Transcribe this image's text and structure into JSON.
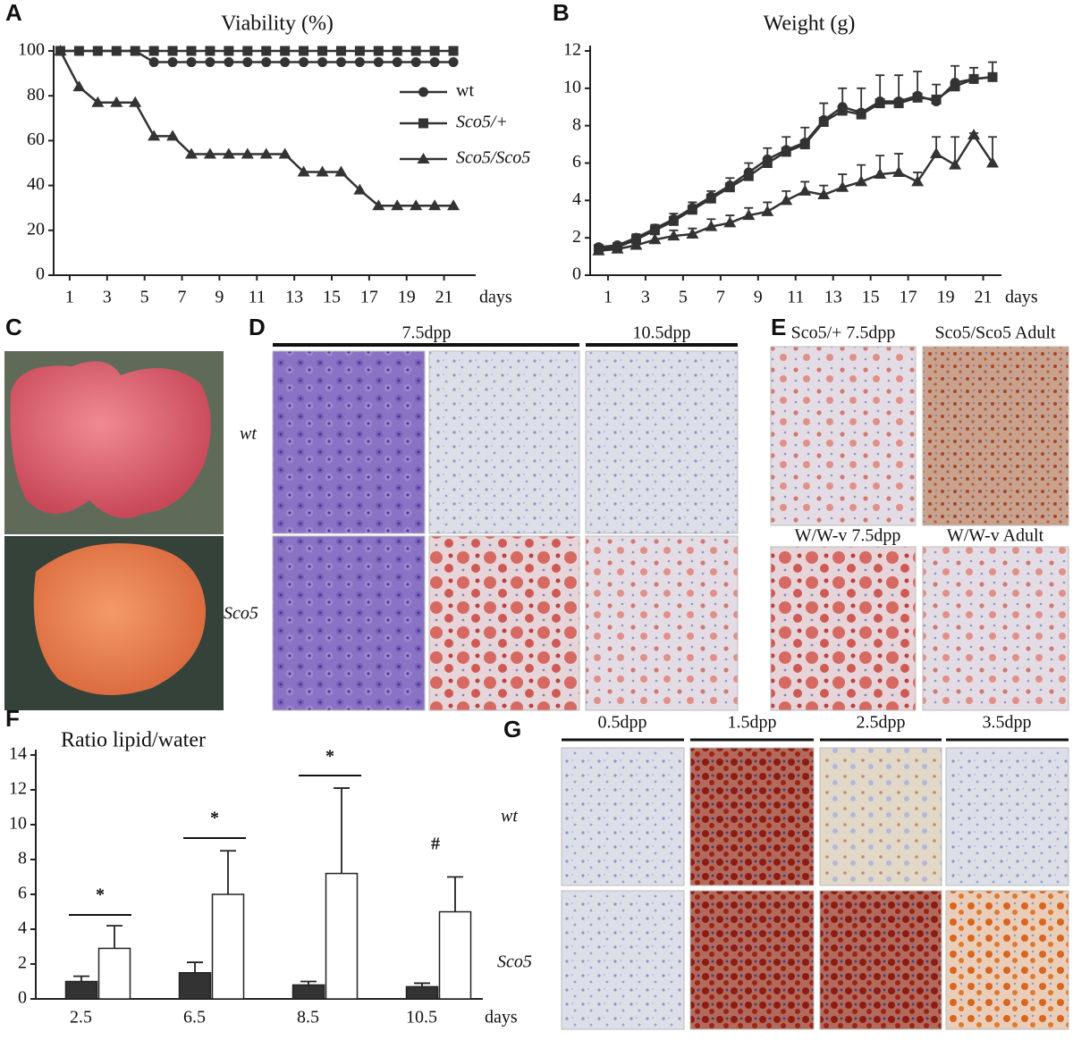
{
  "panel_labels": [
    "A",
    "B",
    "C",
    "D",
    "E",
    "F",
    "G"
  ],
  "chart_data": [
    {
      "type": "line",
      "title": "Viability (%)",
      "x": [
        0.5,
        1.5,
        2.5,
        3.5,
        4.5,
        5.5,
        6.5,
        7.5,
        8.5,
        9.5,
        10.5,
        11.5,
        12.5,
        13.5,
        14.5,
        15.5,
        16.5,
        17.5,
        18.5,
        19.5,
        20.5,
        21.5
      ],
      "xlim": [
        0,
        22.5
      ],
      "xticks": [
        1,
        3,
        5,
        7,
        9,
        11,
        13,
        15,
        17,
        19,
        21
      ],
      "xlabel": "days",
      "ylim": [
        0,
        100
      ],
      "yticks": [
        0,
        20,
        40,
        60,
        80,
        100
      ],
      "legend": "upper right",
      "series": [
        {
          "name": "wt",
          "color": "#333333",
          "marker": "circle",
          "values": [
            100,
            100,
            100,
            100,
            100,
            95,
            95,
            95,
            95,
            95,
            95,
            95,
            95,
            95,
            95,
            95,
            95,
            95,
            95,
            95,
            95,
            95
          ]
        },
        {
          "name": "Sco5/+",
          "color": "#333333",
          "marker": "square",
          "values": [
            100,
            100,
            100,
            100,
            100,
            100,
            100,
            100,
            100,
            100,
            100,
            100,
            100,
            100,
            100,
            100,
            100,
            100,
            100,
            100,
            100,
            100
          ]
        },
        {
          "name": "Sco5/Sco5",
          "color": "#333333",
          "marker": "triangle",
          "values": [
            100,
            84,
            77,
            77,
            77,
            62,
            62,
            54,
            54,
            54,
            54,
            54,
            54,
            46,
            46,
            46,
            38,
            31,
            31,
            31,
            31,
            31
          ]
        }
      ]
    },
    {
      "type": "line",
      "title": "Weight (g)",
      "x": [
        0.5,
        1.5,
        2.5,
        3.5,
        4.5,
        5.5,
        6.5,
        7.5,
        8.5,
        9.5,
        10.5,
        11.5,
        12.5,
        13.5,
        14.5,
        15.5,
        16.5,
        17.5,
        18.5,
        19.5,
        20.5,
        21.5
      ],
      "xlim": [
        0,
        22.5
      ],
      "xticks": [
        1,
        3,
        5,
        7,
        9,
        11,
        13,
        15,
        17,
        19,
        21
      ],
      "xlabel": "days",
      "ylim": [
        0,
        12
      ],
      "yticks": [
        0,
        2,
        4,
        6,
        8,
        10,
        12
      ],
      "series": [
        {
          "color": "#333333",
          "marker": "circle",
          "values": [
            1.5,
            1.6,
            2.0,
            2.5,
            3.0,
            3.6,
            4.2,
            4.8,
            5.5,
            6.2,
            6.7,
            7.1,
            8.3,
            9.0,
            8.7,
            9.3,
            9.3,
            9.6,
            9.3,
            10.3,
            10.5,
            10.6
          ],
          "errors": [
            0.1,
            0.1,
            0.2,
            0.2,
            0.3,
            0.3,
            0.3,
            0.4,
            0.5,
            0.6,
            0.7,
            0.8,
            0.9,
            1.0,
            1.3,
            1.4,
            1.4,
            1.3,
            0.9,
            0.9,
            0.6,
            0.8
          ]
        },
        {
          "color": "#333333",
          "marker": "square",
          "values": [
            1.4,
            1.5,
            1.9,
            2.4,
            2.9,
            3.5,
            4.1,
            4.7,
            5.3,
            6.0,
            6.6,
            7.0,
            8.2,
            8.8,
            8.6,
            9.2,
            9.2,
            9.5,
            9.4,
            10.1,
            10.5,
            10.6
          ]
        },
        {
          "color": "#333333",
          "marker": "triangle",
          "values": [
            1.3,
            1.4,
            1.6,
            1.9,
            2.1,
            2.2,
            2.6,
            2.8,
            3.2,
            3.4,
            4.0,
            4.5,
            4.3,
            4.7,
            5.0,
            5.4,
            5.5,
            5.0,
            6.5,
            5.9,
            7.5,
            6.0
          ],
          "errors": [
            0.1,
            0.1,
            0.2,
            0.3,
            0.3,
            0.3,
            0.4,
            0.4,
            0.4,
            0.5,
            0.5,
            0.5,
            0.5,
            0.7,
            0.9,
            1.0,
            1.0,
            0.5,
            0.9,
            1.5,
            0.1,
            1.4
          ]
        }
      ]
    },
    {
      "type": "bar",
      "title": "Ratio lipid/water",
      "categories": [
        "2.5",
        "6.5",
        "8.5",
        "10.5"
      ],
      "xlabel": "days",
      "ylim": [
        0,
        14
      ],
      "yticks": [
        0,
        2,
        4,
        6,
        8,
        10,
        12,
        14
      ],
      "series": [
        {
          "color": "#333333",
          "values": [
            1.0,
            1.5,
            0.8,
            0.7
          ],
          "errors": [
            0.3,
            0.6,
            0.2,
            0.2
          ]
        },
        {
          "color": "#ffffff",
          "values": [
            2.9,
            6.0,
            7.2,
            5.0
          ],
          "errors": [
            1.3,
            2.5,
            4.9,
            2.0
          ]
        }
      ],
      "annotations": [
        "*",
        "*",
        "*",
        "#"
      ]
    }
  ],
  "images": {
    "C": {
      "rows": [
        "wt",
        "Sco5"
      ]
    },
    "D": {
      "columns": [
        "7.5dpp",
        "10.5dpp"
      ]
    },
    "E": {
      "labels": [
        "Sco5/+ 7.5dpp",
        "Sco5/Sco5 Adult",
        "W/W-v 7.5dpp",
        "W/W-v Adult"
      ]
    },
    "G": {
      "columns": [
        "0.5dpp",
        "1.5dpp",
        "2.5dpp",
        "3.5dpp"
      ],
      "rows": [
        "wt",
        "Sco5"
      ]
    }
  }
}
